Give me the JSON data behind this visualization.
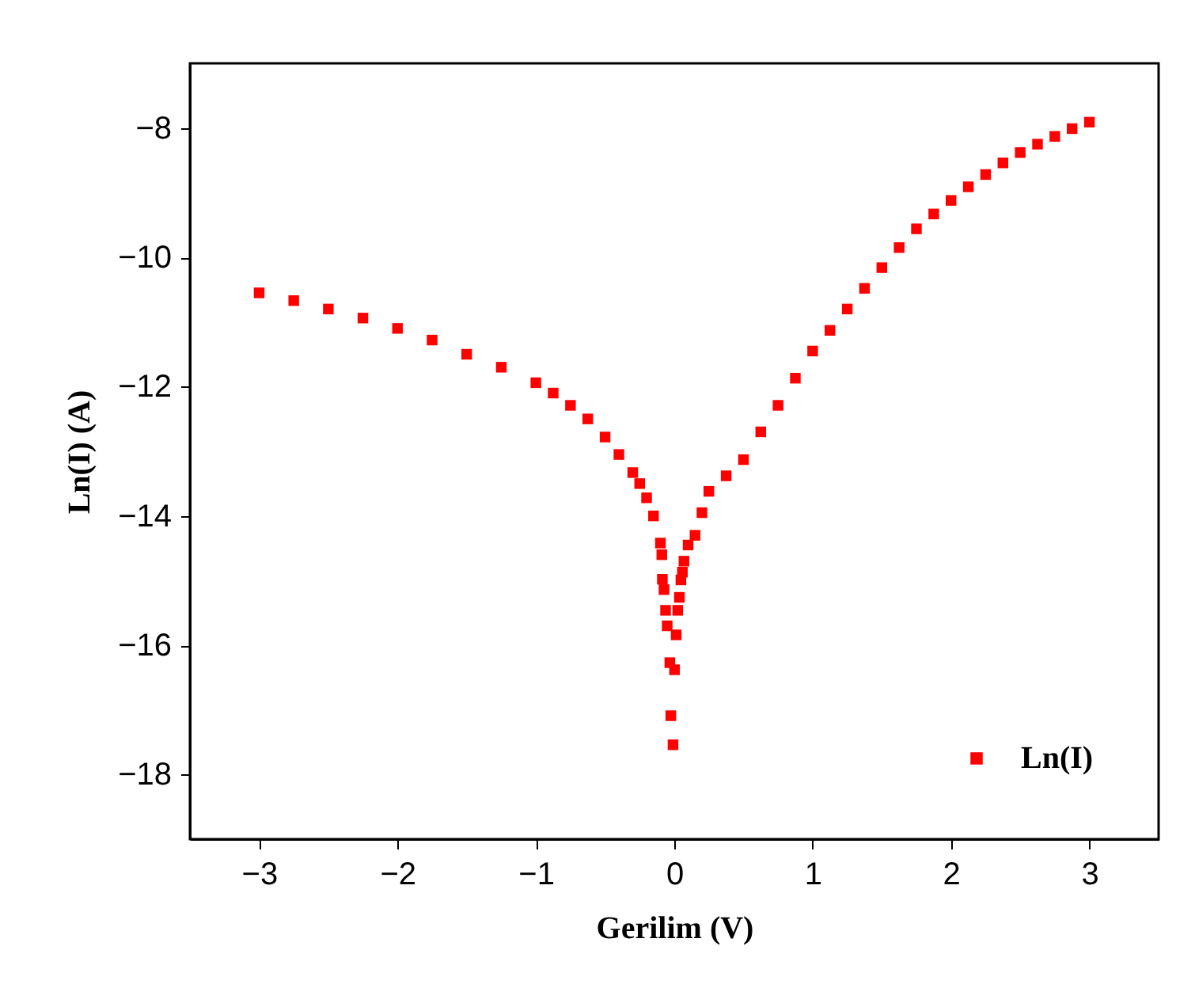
{
  "chart_data": {
    "type": "scatter",
    "xlabel": "Gerilim (V)",
    "ylabel": "Ln(I) (A)",
    "xlim": [
      -3.5,
      3.5
    ],
    "ylim": [
      -19,
      -7
    ],
    "xticks": [
      -3,
      -2,
      -1,
      0,
      1,
      2,
      3
    ],
    "yticks": [
      -18,
      -16,
      -14,
      -12,
      -10,
      -8
    ],
    "grid": false,
    "legend": "bottom right",
    "marker": "square",
    "series": [
      {
        "name": "Ln(I)",
        "color": "#ff0000",
        "x": [
          -3,
          -2.75,
          -2.5,
          -2.25,
          -2,
          -1.75,
          -1.5,
          -1.25,
          -1,
          -0.875,
          -0.75,
          -0.625,
          -0.5,
          -0.4,
          -0.3,
          -0.25,
          -0.2,
          -0.15,
          -0.1,
          -0.09,
          -0.086,
          -0.074,
          -0.063,
          -0.051,
          -0.032,
          -0.025,
          -0.009,
          0.002,
          0.014,
          0.025,
          0.037,
          0.048,
          0.059,
          0.07,
          0.1,
          0.15,
          0.2,
          0.25,
          0.375,
          0.5,
          0.625,
          0.75,
          0.875,
          1,
          1.125,
          1.25,
          1.375,
          1.5,
          1.625,
          1.75,
          1.875,
          2,
          2.125,
          2.25,
          2.375,
          2.5,
          2.625,
          2.75,
          2.875,
          3
        ],
        "values": [
          -10.55,
          -10.67,
          -10.8,
          -10.94,
          -11.1,
          -11.28,
          -11.5,
          -11.7,
          -11.94,
          -12.1,
          -12.29,
          -12.5,
          -12.78,
          -13.05,
          -13.33,
          -13.5,
          -13.72,
          -14.0,
          -14.42,
          -14.6,
          -14.98,
          -15.14,
          -15.46,
          -15.7,
          -16.27,
          -17.09,
          -17.54,
          -16.38,
          -15.84,
          -15.46,
          -15.26,
          -14.99,
          -14.87,
          -14.7,
          -14.45,
          -14.3,
          -13.95,
          -13.62,
          -13.38,
          -13.13,
          -12.7,
          -12.29,
          -11.87,
          -11.45,
          -11.13,
          -10.8,
          -10.48,
          -10.16,
          -9.85,
          -9.56,
          -9.33,
          -9.12,
          -8.91,
          -8.72,
          -8.54,
          -8.38,
          -8.25,
          -8.13,
          -8.01,
          -7.91
        ]
      }
    ]
  }
}
